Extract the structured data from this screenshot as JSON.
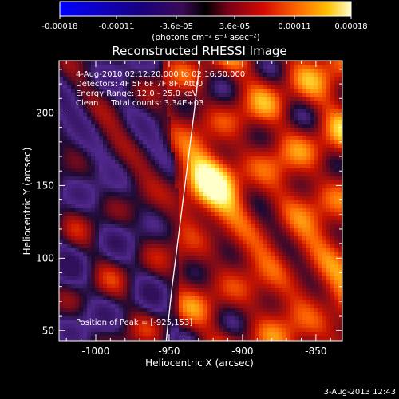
{
  "colorbar": {
    "ticks": [
      {
        "value": -0.00018,
        "label": "-0.00018"
      },
      {
        "value": -0.00011,
        "label": "-0.00011"
      },
      {
        "value": -3.6e-05,
        "label": "-3.6e-05"
      },
      {
        "value": 3.6e-05,
        "label": "3.6e-05"
      },
      {
        "value": 0.00011,
        "label": "0.00011"
      },
      {
        "value": 0.00018,
        "label": "0.00018"
      }
    ],
    "range": [
      -0.00018,
      0.00018
    ],
    "unit_label": "(photons cm⁻² s⁻¹ asec⁻²)"
  },
  "chart_data": {
    "type": "heatmap",
    "title": "Reconstructed RHESSI Image",
    "xlabel": "Heliocentric X (arcsec)",
    "ylabel": "Heliocentric Y (arcsec)",
    "xlim": [
      -1025,
      -832
    ],
    "ylim": [
      43,
      236
    ],
    "x_ticks": [
      -1000,
      -950,
      -900,
      -850
    ],
    "y_ticks": [
      50,
      100,
      150,
      200
    ],
    "x_tick_labels": [
      "-1000",
      "-950",
      "-900",
      "-850"
    ],
    "y_tick_labels": [
      "50",
      "100",
      "150",
      "200"
    ],
    "info_lines": [
      "4-Aug-2010 02:12:20.000 to 02:16:50.000",
      "Detectors: 4F 5F 6F 7F 8F, Att/0",
      "Energy Range: 12.0 - 25.0 keV",
      "Clean     Total counts: 3.34E+03"
    ],
    "peak_label": "Position of Peak = [-925,153]",
    "peak": {
      "x": -925,
      "y": 153
    },
    "limb": [
      [
        -929,
        236
      ],
      [
        -933,
        200
      ],
      [
        -938,
        160
      ],
      [
        -943,
        120
      ],
      [
        -948,
        80
      ],
      [
        -952,
        43
      ]
    ]
  },
  "footer": {
    "timestamp": "3-Aug-2013 12:43"
  },
  "colors": {
    "background": "#000000",
    "foreground": "#ffffff",
    "limb": "#ffffff"
  }
}
